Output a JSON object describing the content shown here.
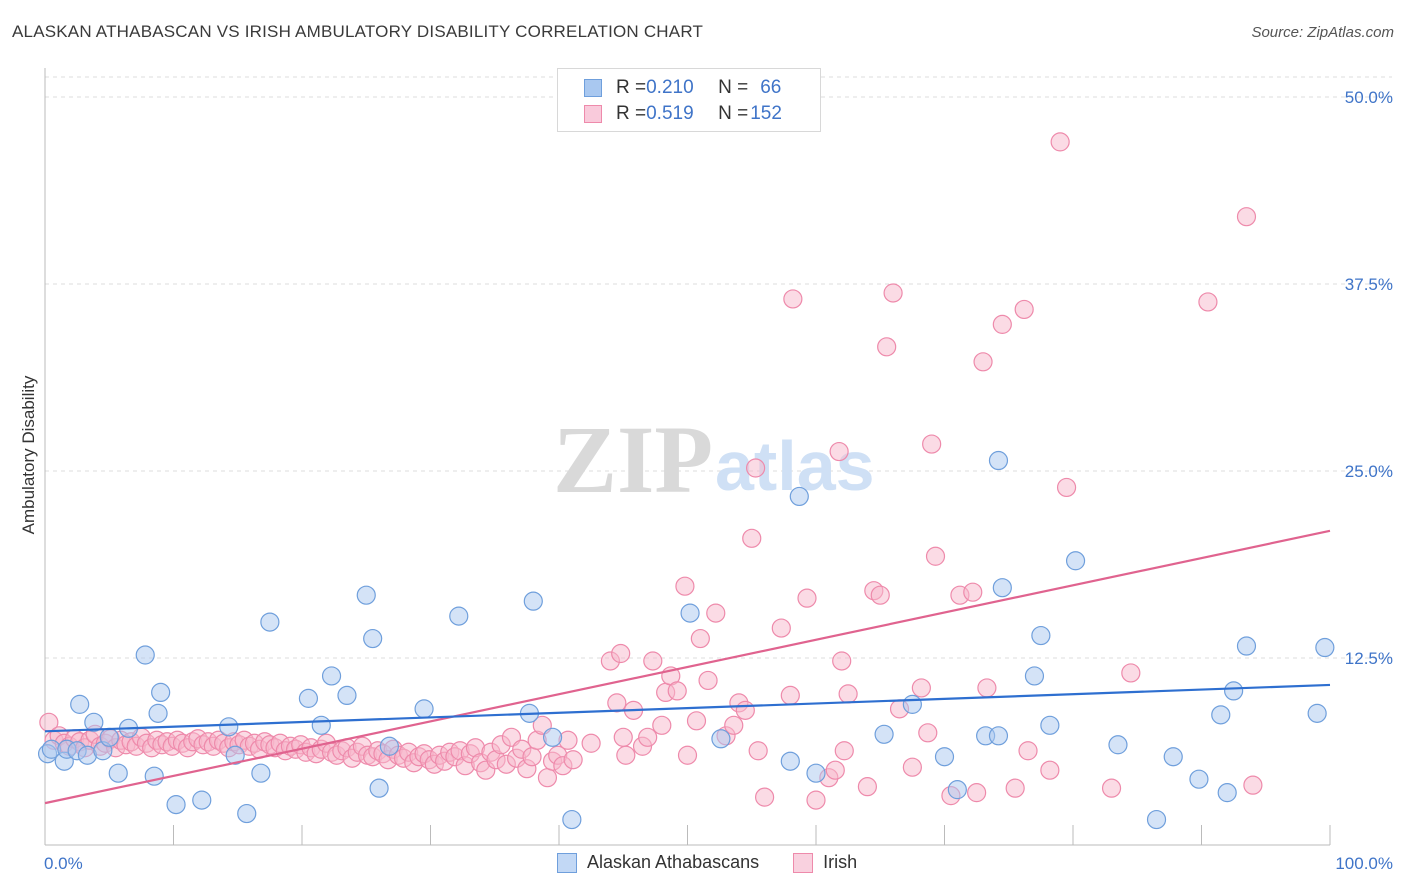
{
  "header": {
    "title": "ALASKAN ATHABASCAN VS IRISH AMBULATORY DISABILITY CORRELATION CHART",
    "source": "Source: ZipAtlas.com"
  },
  "legend": {
    "rows": [
      {
        "r_label": "R = ",
        "r_value": "0.210",
        "n_label": "N = ",
        "n_value": "66"
      },
      {
        "r_label": "R = ",
        "r_value": "0.519",
        "n_label": "N = ",
        "n_value": "152"
      }
    ]
  },
  "bottom_legend": {
    "series_a": "Alaskan Athabascans",
    "series_b": "Irish"
  },
  "colors": {
    "blue_fill": "#a9c8f0",
    "blue_stroke": "#6f9fdc",
    "blue_line": "#2e6fd0",
    "pink_fill": "#f7b8cc",
    "pink_stroke": "#ee8aab",
    "pink_line": "#e0638f",
    "tick_label": "#3f74c8",
    "grid": "#dddddd"
  },
  "watermark": {
    "zip": "ZIP",
    "atlas": "atlas"
  },
  "chart_data": {
    "type": "scatter",
    "xlabel": "",
    "ylabel": "Ambulatory Disability",
    "xlim": [
      0,
      100
    ],
    "ylim": [
      0,
      50
    ],
    "x_tick_labels": [
      "0.0%",
      "100.0%"
    ],
    "y_ticks": [
      12.5,
      25.0,
      37.5,
      50.0
    ],
    "y_tick_labels": [
      "12.5%",
      "25.0%",
      "37.5%",
      "50.0%"
    ],
    "grid": "horizontal dashed",
    "series": [
      {
        "name": "Alaskan Athabascans",
        "color": "blue",
        "trend": [
          [
            0,
            7.6
          ],
          [
            100,
            10.7
          ]
        ],
        "points": [
          [
            0.2,
            6.1
          ],
          [
            0.5,
            6.4
          ],
          [
            1.5,
            5.6
          ],
          [
            1.7,
            6.4
          ],
          [
            2.5,
            6.3
          ],
          [
            2.7,
            9.4
          ],
          [
            3.3,
            6.0
          ],
          [
            3.8,
            8.2
          ],
          [
            4.5,
            6.3
          ],
          [
            5.0,
            7.2
          ],
          [
            5.7,
            4.8
          ],
          [
            6.5,
            7.8
          ],
          [
            7.8,
            12.7
          ],
          [
            8.5,
            4.6
          ],
          [
            8.8,
            8.8
          ],
          [
            9.0,
            10.2
          ],
          [
            10.2,
            2.7
          ],
          [
            12.2,
            3.0
          ],
          [
            14.3,
            7.9
          ],
          [
            14.8,
            6.0
          ],
          [
            15.7,
            2.1
          ],
          [
            16.8,
            4.8
          ],
          [
            17.5,
            14.9
          ],
          [
            20.5,
            9.8
          ],
          [
            21.5,
            8.0
          ],
          [
            22.3,
            11.3
          ],
          [
            23.5,
            10.0
          ],
          [
            25.0,
            16.7
          ],
          [
            25.5,
            13.8
          ],
          [
            26.0,
            3.8
          ],
          [
            26.8,
            6.6
          ],
          [
            29.5,
            9.1
          ],
          [
            32.2,
            15.3
          ],
          [
            37.7,
            8.8
          ],
          [
            38.0,
            16.3
          ],
          [
            39.5,
            7.2
          ],
          [
            41.0,
            1.7
          ],
          [
            50.2,
            15.5
          ],
          [
            52.6,
            7.1
          ],
          [
            58.0,
            5.6
          ],
          [
            58.7,
            23.3
          ],
          [
            60.0,
            4.8
          ],
          [
            65.3,
            7.4
          ],
          [
            67.5,
            9.4
          ],
          [
            70.0,
            5.9
          ],
          [
            71.0,
            3.7
          ],
          [
            73.2,
            7.3
          ],
          [
            74.2,
            7.3
          ],
          [
            74.2,
            25.7
          ],
          [
            74.5,
            17.2
          ],
          [
            77.0,
            11.3
          ],
          [
            77.5,
            14.0
          ],
          [
            78.2,
            8.0
          ],
          [
            80.2,
            19.0
          ],
          [
            83.5,
            6.7
          ],
          [
            86.5,
            1.7
          ],
          [
            87.8,
            5.9
          ],
          [
            89.8,
            4.4
          ],
          [
            91.5,
            8.7
          ],
          [
            92.0,
            3.5
          ],
          [
            92.5,
            10.3
          ],
          [
            93.5,
            13.3
          ],
          [
            99.0,
            8.8
          ],
          [
            99.6,
            13.2
          ]
        ]
      },
      {
        "name": "Irish",
        "color": "pink",
        "trend": [
          [
            0,
            2.8
          ],
          [
            100,
            21.0
          ]
        ],
        "points": [
          [
            0.3,
            8.2
          ],
          [
            0.7,
            7.0
          ],
          [
            1.1,
            7.3
          ],
          [
            1.5,
            6.8
          ],
          [
            1.9,
            6.6
          ],
          [
            2.3,
            7.1
          ],
          [
            2.7,
            6.9
          ],
          [
            3.1,
            6.5
          ],
          [
            3.5,
            7.0
          ],
          [
            3.9,
            7.4
          ],
          [
            4.3,
            6.6
          ],
          [
            4.7,
            6.8
          ],
          [
            5.1,
            7.1
          ],
          [
            5.5,
            6.5
          ],
          [
            5.9,
            7.0
          ],
          [
            6.3,
            6.7
          ],
          [
            6.7,
            6.9
          ],
          [
            7.1,
            6.6
          ],
          [
            7.5,
            7.2
          ],
          [
            7.9,
            6.8
          ],
          [
            8.3,
            6.5
          ],
          [
            8.7,
            7.0
          ],
          [
            9.1,
            6.7
          ],
          [
            9.5,
            6.9
          ],
          [
            9.9,
            6.6
          ],
          [
            10.3,
            7.0
          ],
          [
            10.7,
            6.8
          ],
          [
            11.1,
            6.5
          ],
          [
            11.5,
            6.9
          ],
          [
            11.9,
            7.1
          ],
          [
            12.3,
            6.7
          ],
          [
            12.7,
            6.9
          ],
          [
            13.1,
            6.6
          ],
          [
            13.5,
            7.0
          ],
          [
            13.9,
            6.8
          ],
          [
            14.3,
            6.5
          ],
          [
            14.7,
            6.9
          ],
          [
            15.1,
            6.7
          ],
          [
            15.5,
            7.0
          ],
          [
            15.9,
            6.6
          ],
          [
            16.3,
            6.8
          ],
          [
            16.7,
            6.4
          ],
          [
            17.1,
            6.9
          ],
          [
            17.5,
            6.7
          ],
          [
            17.9,
            6.5
          ],
          [
            18.3,
            6.8
          ],
          [
            18.7,
            6.3
          ],
          [
            19.1,
            6.6
          ],
          [
            19.5,
            6.4
          ],
          [
            19.9,
            6.7
          ],
          [
            20.3,
            6.2
          ],
          [
            20.7,
            6.5
          ],
          [
            21.1,
            6.1
          ],
          [
            21.5,
            6.4
          ],
          [
            21.9,
            6.8
          ],
          [
            22.3,
            6.2
          ],
          [
            22.7,
            6.0
          ],
          [
            23.1,
            6.3
          ],
          [
            23.5,
            6.5
          ],
          [
            23.9,
            5.8
          ],
          [
            24.3,
            6.2
          ],
          [
            24.7,
            6.6
          ],
          [
            25.1,
            6.0
          ],
          [
            25.5,
            5.9
          ],
          [
            25.9,
            6.3
          ],
          [
            26.3,
            6.1
          ],
          [
            26.7,
            5.7
          ],
          [
            27.1,
            6.4
          ],
          [
            27.5,
            6.0
          ],
          [
            27.9,
            5.8
          ],
          [
            28.3,
            6.2
          ],
          [
            28.7,
            5.5
          ],
          [
            29.1,
            5.9
          ],
          [
            29.5,
            6.1
          ],
          [
            29.9,
            5.7
          ],
          [
            30.3,
            5.4
          ],
          [
            30.7,
            6.0
          ],
          [
            31.1,
            5.6
          ],
          [
            31.5,
            6.2
          ],
          [
            31.9,
            5.9
          ],
          [
            32.3,
            6.3
          ],
          [
            32.7,
            5.3
          ],
          [
            33.1,
            6.1
          ],
          [
            33.5,
            6.5
          ],
          [
            33.9,
            5.5
          ],
          [
            34.3,
            5.0
          ],
          [
            34.7,
            6.2
          ],
          [
            35.1,
            5.7
          ],
          [
            35.5,
            6.7
          ],
          [
            35.9,
            5.4
          ],
          [
            36.3,
            7.2
          ],
          [
            36.7,
            5.8
          ],
          [
            37.1,
            6.4
          ],
          [
            37.5,
            5.1
          ],
          [
            37.9,
            5.9
          ],
          [
            38.3,
            7.0
          ],
          [
            38.7,
            8.0
          ],
          [
            39.1,
            4.5
          ],
          [
            39.5,
            5.6
          ],
          [
            39.9,
            6.0
          ],
          [
            40.3,
            5.3
          ],
          [
            40.7,
            7.0
          ],
          [
            41.1,
            5.7
          ],
          [
            42.5,
            6.8
          ],
          [
            44.0,
            12.3
          ],
          [
            44.5,
            9.5
          ],
          [
            44.8,
            12.8
          ],
          [
            45.0,
            7.2
          ],
          [
            45.2,
            6.0
          ],
          [
            45.8,
            9.0
          ],
          [
            46.5,
            6.6
          ],
          [
            46.9,
            7.2
          ],
          [
            47.3,
            12.3
          ],
          [
            48.0,
            8.0
          ],
          [
            48.3,
            10.2
          ],
          [
            48.7,
            11.3
          ],
          [
            49.2,
            10.3
          ],
          [
            49.8,
            17.3
          ],
          [
            50.0,
            6.0
          ],
          [
            50.7,
            8.3
          ],
          [
            51.0,
            13.8
          ],
          [
            51.6,
            11.0
          ],
          [
            52.2,
            15.5
          ],
          [
            53.0,
            7.3
          ],
          [
            53.6,
            8.0
          ],
          [
            54.0,
            9.5
          ],
          [
            54.5,
            9.0
          ],
          [
            55.0,
            20.5
          ],
          [
            55.3,
            25.2
          ],
          [
            55.5,
            6.3
          ],
          [
            56.0,
            3.2
          ],
          [
            57.3,
            14.5
          ],
          [
            58.0,
            10.0
          ],
          [
            58.2,
            36.5
          ],
          [
            59.3,
            16.5
          ],
          [
            60.0,
            3.0
          ],
          [
            61.0,
            4.5
          ],
          [
            61.5,
            5.0
          ],
          [
            61.8,
            26.3
          ],
          [
            62.0,
            12.3
          ],
          [
            62.2,
            6.3
          ],
          [
            62.5,
            10.1
          ],
          [
            64.0,
            3.9
          ],
          [
            64.5,
            17.0
          ],
          [
            65.0,
            16.7
          ],
          [
            65.5,
            33.3
          ],
          [
            66.0,
            36.9
          ],
          [
            66.5,
            9.1
          ],
          [
            67.5,
            5.2
          ],
          [
            68.2,
            10.5
          ],
          [
            68.7,
            7.5
          ],
          [
            69.0,
            26.8
          ],
          [
            69.3,
            19.3
          ],
          [
            70.5,
            3.3
          ],
          [
            71.2,
            16.7
          ],
          [
            72.2,
            16.9
          ],
          [
            72.5,
            3.5
          ],
          [
            73.0,
            32.3
          ],
          [
            73.3,
            10.5
          ],
          [
            74.5,
            34.8
          ],
          [
            75.5,
            3.8
          ],
          [
            76.2,
            35.8
          ],
          [
            76.5,
            6.3
          ],
          [
            78.2,
            5.0
          ],
          [
            79.0,
            47.0
          ],
          [
            79.5,
            23.9
          ],
          [
            83.0,
            3.8
          ],
          [
            84.5,
            11.5
          ],
          [
            90.5,
            36.3
          ],
          [
            93.5,
            42.0
          ],
          [
            94.0,
            4.0
          ]
        ]
      }
    ]
  }
}
